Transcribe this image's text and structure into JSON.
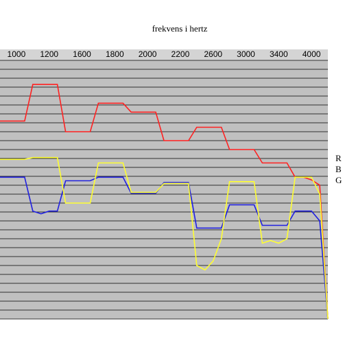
{
  "chart_data": {
    "type": "line",
    "title": "frekvens i hertz",
    "categories": [
      "1000",
      "1200",
      "1600",
      "1800",
      "2000",
      "2200",
      "2600",
      "3000",
      "3400",
      "4000"
    ],
    "x": [
      -0.5,
      -0.25,
      0,
      0.25,
      0.5,
      0.75,
      1,
      1.25,
      1.5,
      1.75,
      2,
      2.25,
      2.5,
      2.75,
      3,
      3.25,
      3.5,
      3.75,
      4,
      4.25,
      4.5,
      4.75,
      5,
      5.25,
      5.5,
      5.75,
      6,
      6.25,
      6.5,
      6.75,
      7,
      7.25,
      7.5,
      7.75,
      8,
      8.25,
      8.5,
      8.75,
      9,
      9.25,
      9.5
    ],
    "xlim": [
      -0.5,
      9.5
    ],
    "ylim": [
      0,
      29
    ],
    "yticks": [
      0,
      1,
      2,
      3,
      4,
      5,
      6,
      7,
      8,
      9,
      10,
      11,
      12,
      13,
      14,
      15,
      16,
      17,
      18,
      19,
      20,
      21,
      22,
      23,
      24,
      25,
      26,
      27,
      28,
      29
    ],
    "grid": true,
    "series": [
      {
        "name": "R",
        "color": "#ff2020",
        "values": [
          22.2,
          22.2,
          22.2,
          22.2,
          26.3,
          26.3,
          26.3,
          26.3,
          21,
          21,
          21,
          21,
          24.2,
          24.2,
          24.2,
          24.2,
          23.2,
          23.2,
          23.2,
          23.2,
          20,
          20,
          20,
          20,
          21.5,
          21.5,
          21.5,
          21.5,
          19,
          19,
          19,
          19,
          17.5,
          17.5,
          17.5,
          17.5,
          15.9,
          15.9,
          15.6,
          15,
          0
        ]
      },
      {
        "name": "B",
        "color": "#2020e0",
        "values": [
          15.9,
          15.9,
          15.9,
          15.9,
          12.1,
          11.8,
          12.1,
          12.1,
          15.5,
          15.5,
          15.5,
          15.5,
          15.9,
          15.9,
          15.9,
          15.9,
          14.1,
          14.1,
          14.1,
          14.1,
          15.3,
          15.3,
          15.3,
          15.3,
          10.2,
          10.2,
          10.2,
          10.2,
          12.8,
          12.8,
          12.8,
          12.8,
          10.5,
          10.5,
          10.5,
          10.5,
          12.1,
          12.1,
          12.1,
          11,
          0
        ]
      },
      {
        "name": "G",
        "color": "#ffff30",
        "values": [
          17.9,
          17.9,
          17.9,
          17.9,
          18.1,
          18.1,
          18.1,
          18.1,
          13,
          13,
          13,
          13,
          17.5,
          17.5,
          17.5,
          17.5,
          14.2,
          14.2,
          14.2,
          14.2,
          15.2,
          15.2,
          15.2,
          15.2,
          6,
          5.5,
          6.5,
          9,
          15.4,
          15.4,
          15.4,
          15.4,
          8.5,
          8.8,
          8.5,
          9,
          15.9,
          15.9,
          15.9,
          14,
          0
        ]
      }
    ]
  }
}
